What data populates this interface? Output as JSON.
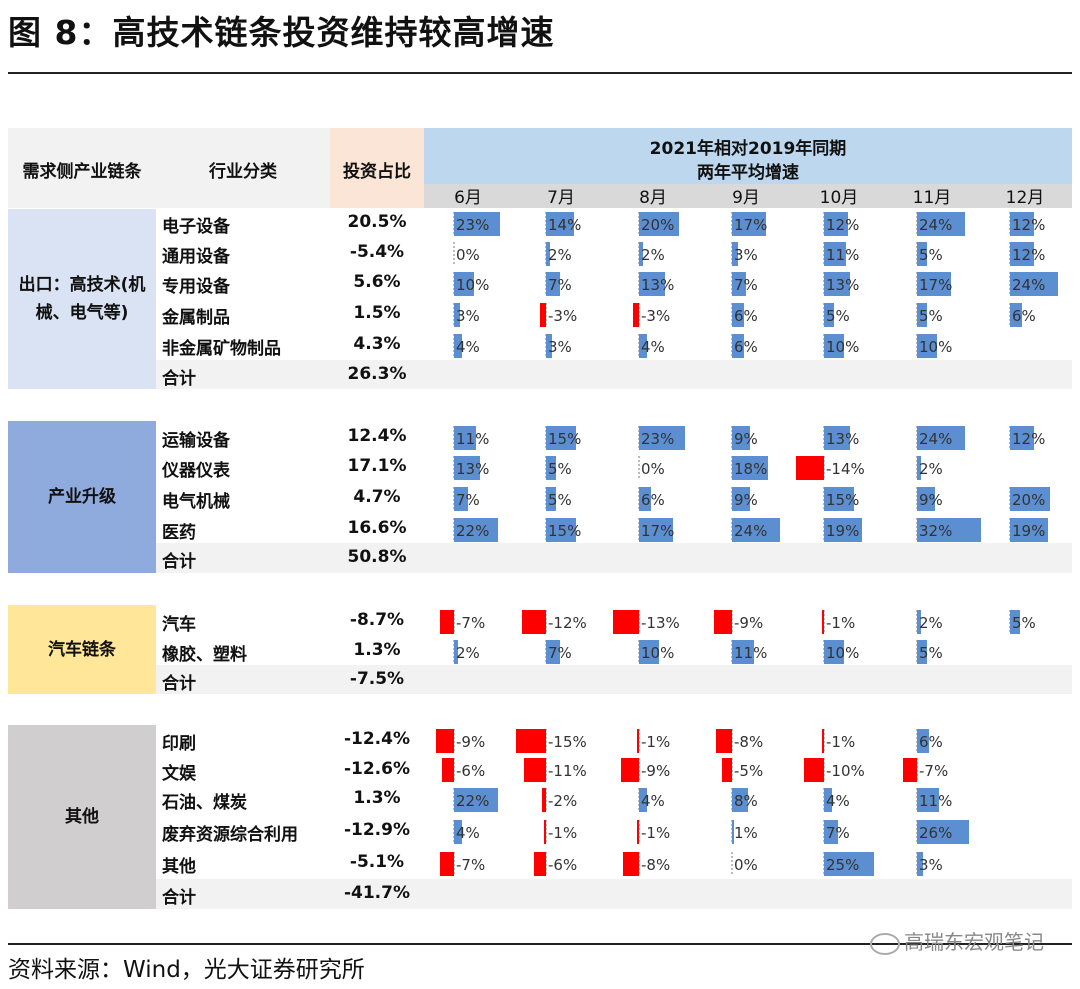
{
  "title": "图 8：高技术链条投资维持较高增速",
  "source": "资料来源：Wind，光大证券研究所",
  "watermark": "高瑞东宏观笔记",
  "colors": {
    "positive": "#5b8fd1",
    "negative": "#ff0000",
    "header_blue": "#bdd7ee",
    "header_gray": "#d9d9d9",
    "share_header": "#fbe5d6",
    "group_export": "#dae3f3",
    "group_upgrade": "#8faadc",
    "group_auto": "#ffe699",
    "group_other": "#d0cece"
  },
  "header": {
    "chain": "需求侧产业链条",
    "industry": "行业分类",
    "share": "投资占比",
    "period_line1": "2021年相对2019年同期",
    "period_line2": "两年平均增速"
  },
  "chart_data": {
    "type": "table",
    "title": "图 8：高技术链条投资维持较高增速",
    "months": [
      "6月",
      "7月",
      "8月",
      "9月",
      "10月",
      "11月",
      "12月"
    ],
    "unit": "%",
    "groups": [
      {
        "name": "出口：高技术(机械、电气等)",
        "name_line1": "出口：高技术(机",
        "name_line2": "械、电气等)",
        "rows": [
          {
            "industry": "电子设备",
            "share": "20.5%",
            "values": [
              23,
              14,
              20,
              17,
              12,
              24,
              12
            ]
          },
          {
            "industry": "通用设备",
            "share": "-5.4%",
            "values": [
              0,
              2,
              2,
              3,
              11,
              5,
              12
            ]
          },
          {
            "industry": "专用设备",
            "share": "5.6%",
            "values": [
              10,
              7,
              13,
              7,
              13,
              17,
              24
            ]
          },
          {
            "industry": "金属制品",
            "share": "1.5%",
            "values": [
              3,
              -3,
              -3,
              6,
              5,
              5,
              6
            ]
          },
          {
            "industry": "非金属矿物制品",
            "share": "4.3%",
            "values": [
              4,
              3,
              4,
              6,
              10,
              10,
              null
            ]
          }
        ],
        "total_label": "合计",
        "total_share": "26.3%"
      },
      {
        "name": "产业升级",
        "name_line1": "产业升级",
        "name_line2": "",
        "rows": [
          {
            "industry": "运输设备",
            "share": "12.4%",
            "values": [
              11,
              15,
              23,
              9,
              13,
              24,
              12
            ]
          },
          {
            "industry": "仪器仪表",
            "share": "17.1%",
            "values": [
              13,
              5,
              0,
              18,
              -14,
              2,
              null
            ]
          },
          {
            "industry": "电气机械",
            "share": "4.7%",
            "values": [
              7,
              5,
              6,
              9,
              15,
              9,
              20
            ]
          },
          {
            "industry": "医药",
            "share": "16.6%",
            "values": [
              22,
              15,
              17,
              24,
              19,
              32,
              19
            ]
          }
        ],
        "total_label": "合计",
        "total_share": "50.8%"
      },
      {
        "name": "汽车链条",
        "name_line1": "汽车链条",
        "name_line2": "",
        "rows": [
          {
            "industry": "汽车",
            "share": "-8.7%",
            "values": [
              -7,
              -12,
              -13,
              -9,
              -1,
              2,
              5
            ]
          },
          {
            "industry": "橡胶、塑料",
            "share": "1.3%",
            "values": [
              2,
              7,
              10,
              11,
              10,
              5,
              null
            ]
          }
        ],
        "total_label": "合计",
        "total_share": "-7.5%"
      },
      {
        "name": "其他",
        "name_line1": "其他",
        "name_line2": "",
        "rows": [
          {
            "industry": "印刷",
            "share": "-12.4%",
            "values": [
              -9,
              -15,
              -1,
              -8,
              -1,
              6,
              null
            ]
          },
          {
            "industry": "文娱",
            "share": "-12.6%",
            "values": [
              -6,
              -11,
              -9,
              -5,
              -10,
              -7,
              null
            ]
          },
          {
            "industry": "石油、煤炭",
            "share": "1.3%",
            "values": [
              22,
              -2,
              4,
              8,
              4,
              11,
              null
            ]
          },
          {
            "industry": "废弃资源综合利用",
            "share": "-12.9%",
            "values": [
              4,
              -1,
              -1,
              1,
              7,
              26,
              null
            ]
          },
          {
            "industry": "其他",
            "share": "-5.1%",
            "values": [
              -7,
              -6,
              -8,
              0,
              25,
              3,
              null
            ]
          }
        ],
        "total_label": "合计",
        "total_share": "-41.7%"
      }
    ]
  }
}
